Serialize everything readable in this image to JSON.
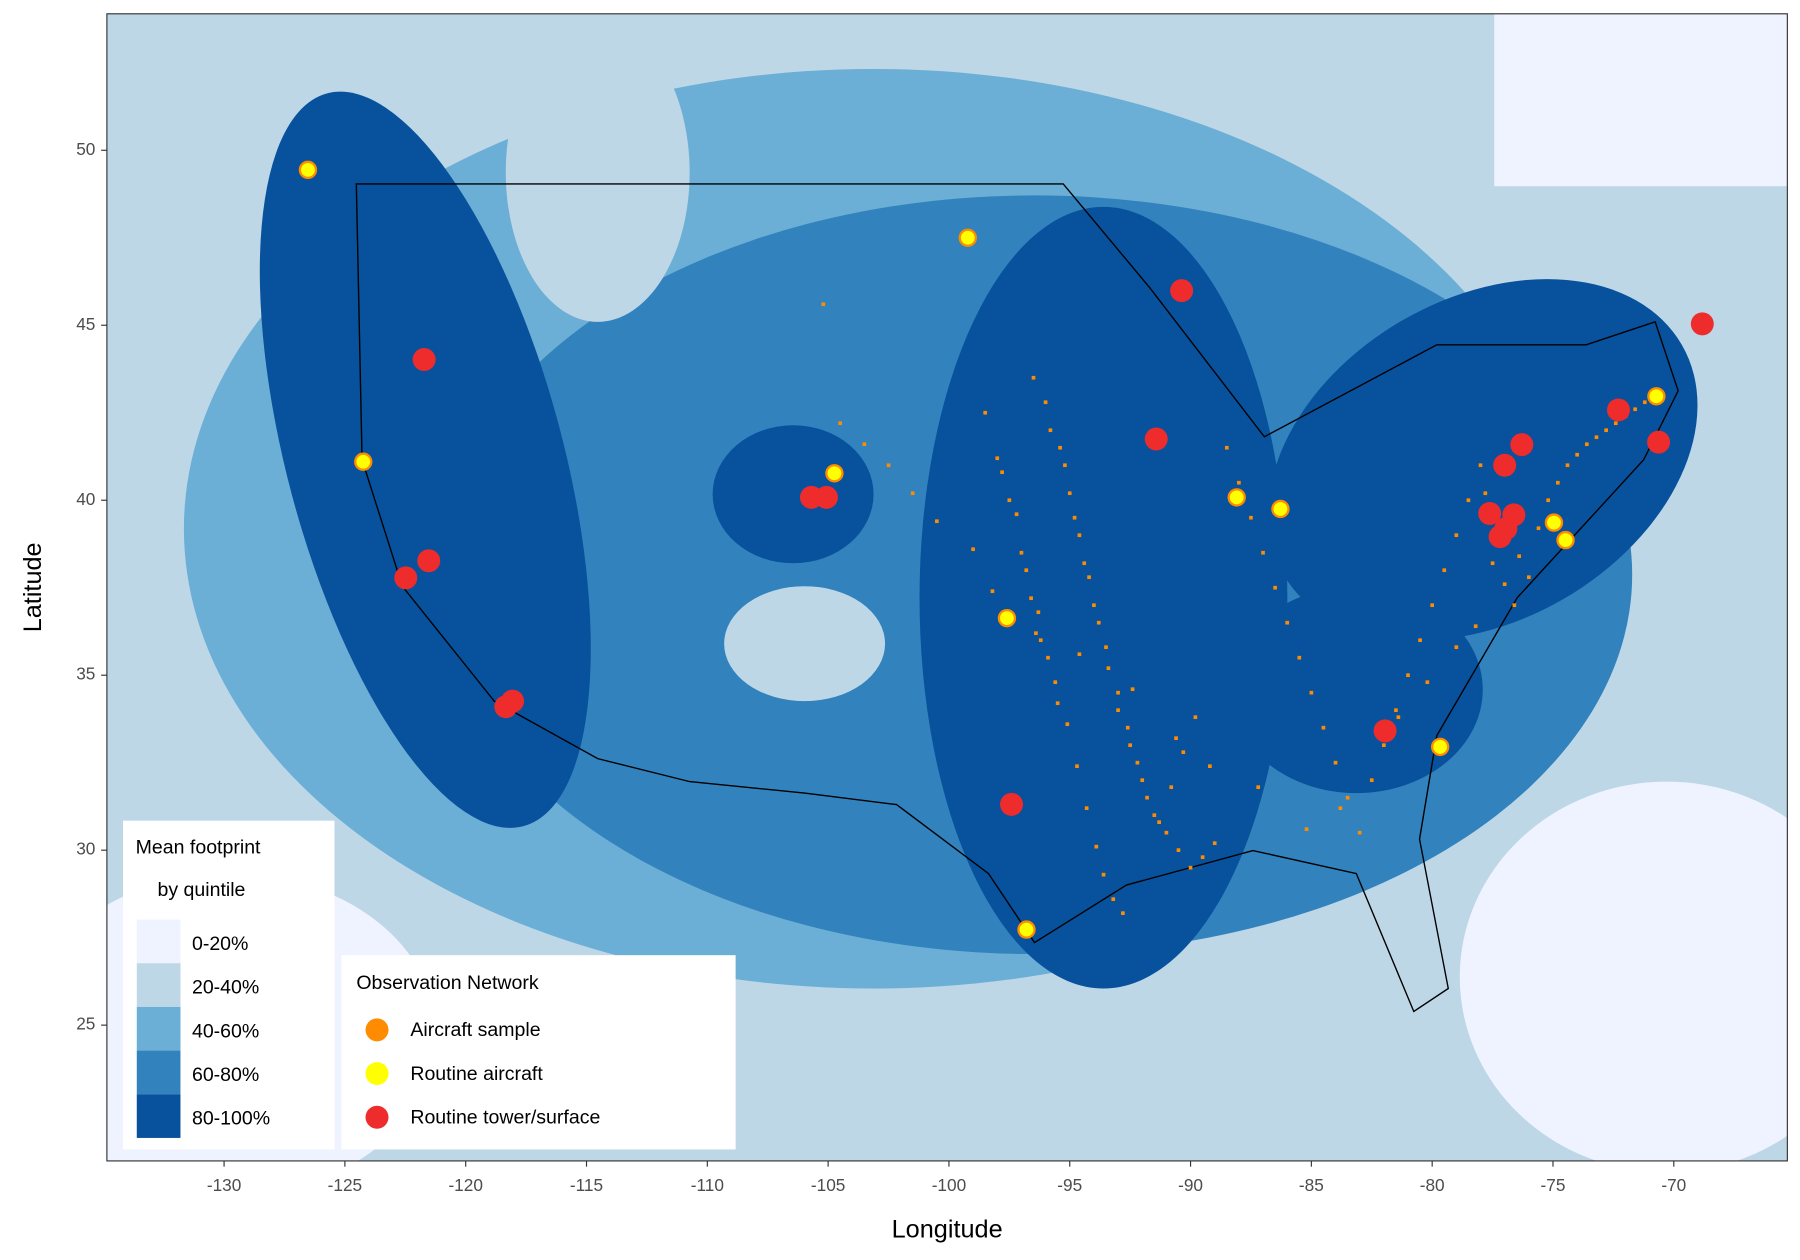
{
  "chart_data": {
    "type": "scatter",
    "x_label": "Longitude",
    "y_label": "Latitude",
    "xlim": [
      -134.85,
      -65.3
    ],
    "ylim": [
      21.12,
      53.9
    ],
    "xticks": [
      -130,
      -125,
      -120,
      -115,
      -110,
      -105,
      -100,
      -95,
      -90,
      -85,
      -80,
      -75,
      -70
    ],
    "yticks": [
      25,
      30,
      35,
      40,
      45,
      50
    ],
    "fill_legend": {
      "title": [
        "Mean footprint",
        "by quintile"
      ],
      "labels": [
        "0-20%",
        "20-40%",
        "40-60%",
        "60-80%",
        "80-100%"
      ],
      "colors": [
        "#eff3ff",
        "#bdd7e7",
        "#6baed6",
        "#3182bd",
        "#08519c"
      ]
    },
    "legend_title": "Observation Network",
    "series": [
      {
        "name": "Aircraft sample",
        "color": "#ff8c00",
        "x": [
          -96.5,
          -96.0,
          -95.4,
          -95.0,
          -94.6,
          -94.2,
          -93.8,
          -93.4,
          -93.0,
          -92.5,
          -92.0,
          -91.5,
          -91.0,
          -90.5,
          -90.0,
          -89.5,
          -89.0,
          -95.8,
          -95.2,
          -94.8,
          -94.4,
          -94.0,
          -93.5,
          -93.0,
          -92.6,
          -92.2,
          -91.8,
          -91.3,
          -90.8,
          -90.3,
          -89.8,
          -98.5,
          -98.0,
          -97.5,
          -97.0,
          -96.6,
          -96.2,
          -95.6,
          -95.1,
          -94.7,
          -94.3,
          -93.9,
          -93.6,
          -93.2,
          -92.8,
          -97.8,
          -97.2,
          -96.8,
          -96.3,
          -95.9,
          -95.5,
          -88.5,
          -88.0,
          -87.5,
          -87.0,
          -86.5,
          -86.0,
          -85.5,
          -85.0,
          -84.5,
          -84.0,
          -83.5,
          -83.0,
          -82.5,
          -82.0,
          -81.5,
          -81.0,
          -80.5,
          -80.0,
          -79.5,
          -79.0,
          -78.5,
          -78.0,
          -77.8,
          -77.3,
          -76.8,
          -76.4,
          -76.0,
          -75.6,
          -75.2,
          -74.8,
          -74.4,
          -74.0,
          -73.6,
          -73.2,
          -72.8,
          -72.4,
          -72.0,
          -71.6,
          -71.2,
          -70.8,
          -77.5,
          -77.0,
          -76.6,
          -78.2,
          -79.0,
          -80.2,
          -81.4,
          -83.8,
          -85.2,
          -87.2,
          -89.2,
          -90.6,
          -92.4,
          -94.6,
          -96.4,
          -98.2,
          -99.0,
          -100.5,
          -101.5,
          -102.5,
          -103.5,
          -104.5,
          -105.2
        ],
        "y": [
          43.5,
          42.8,
          41.5,
          40.2,
          39.0,
          37.8,
          36.5,
          35.2,
          34.0,
          33.0,
          32.0,
          31.0,
          30.5,
          30.0,
          29.5,
          29.8,
          30.2,
          42.0,
          41.0,
          39.5,
          38.2,
          37.0,
          35.8,
          34.5,
          33.5,
          32.5,
          31.5,
          30.8,
          31.8,
          32.8,
          33.8,
          42.5,
          41.2,
          40.0,
          38.5,
          37.2,
          36.0,
          34.8,
          33.6,
          32.4,
          31.2,
          30.1,
          29.3,
          28.6,
          28.2,
          40.8,
          39.6,
          38.0,
          36.8,
          35.5,
          34.2,
          41.5,
          40.5,
          39.5,
          38.5,
          37.5,
          36.5,
          35.5,
          34.5,
          33.5,
          32.5,
          31.5,
          30.5,
          32.0,
          33.0,
          34.0,
          35.0,
          36.0,
          37.0,
          38.0,
          39.0,
          40.0,
          41.0,
          40.2,
          39.6,
          39.0,
          38.4,
          37.8,
          39.2,
          40.0,
          40.5,
          41.0,
          41.3,
          41.6,
          41.8,
          42.0,
          42.2,
          42.4,
          42.6,
          42.8,
          43.0,
          38.2,
          37.6,
          37.0,
          36.4,
          35.8,
          34.8,
          33.8,
          31.2,
          30.6,
          31.8,
          32.4,
          33.2,
          34.6,
          35.6,
          36.2,
          37.4,
          38.6,
          39.4,
          40.2,
          41.0,
          41.6,
          42.2,
          45.6
        ]
      },
      {
        "name": "Routine aircraft",
        "color": "#ffff00",
        "x": [
          -126.53,
          -124.24,
          -99.22,
          -104.74,
          -97.6,
          -90.28,
          -88.09,
          -86.28,
          -74.96,
          -74.48,
          -79.67,
          -70.72,
          -96.79,
          -91.47
        ],
        "y": [
          49.44,
          41.1,
          47.5,
          40.77,
          36.63,
          45.99,
          40.08,
          39.75,
          39.36,
          38.86,
          32.95,
          42.97,
          27.73,
          41.75
        ]
      },
      {
        "name": "Routine tower/surface",
        "color": "#ee2c2c",
        "x": [
          -121.72,
          -122.48,
          -121.53,
          -118.34,
          -118.06,
          -105.69,
          -105.07,
          -97.41,
          -91.42,
          -90.37,
          -81.95,
          -77.62,
          -76.95,
          -76.62,
          -77.0,
          -76.29,
          -72.29,
          -70.63,
          -68.82,
          -77.19
        ],
        "y": [
          44.02,
          37.78,
          38.27,
          34.1,
          34.26,
          40.08,
          40.08,
          31.31,
          41.75,
          45.99,
          33.41,
          39.62,
          39.19,
          39.58,
          41.0,
          41.59,
          42.58,
          41.66,
          45.04,
          38.96
        ]
      }
    ]
  }
}
